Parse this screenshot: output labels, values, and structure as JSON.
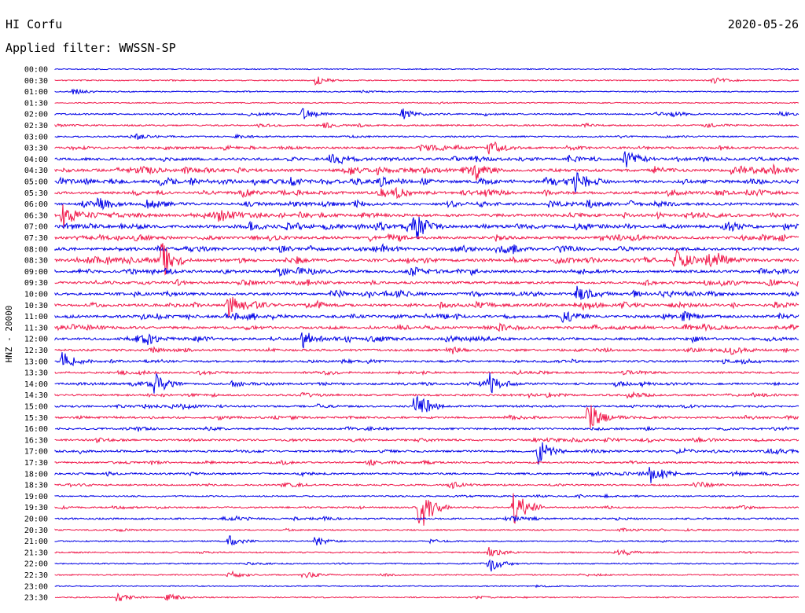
{
  "header": {
    "station": "HI Corfu",
    "date": "2020-05-26",
    "filter_label": "Applied filter: WWSSN-SP"
  },
  "chart_data": {
    "type": "line",
    "title": "HI Corfu",
    "subtitle": "Applied filter: WWSSN-SP",
    "ylabel": "HNZ - 20000",
    "trace_colors": [
      "#0000e6",
      "#f0194b"
    ],
    "row_labels": [
      "00:00",
      "00:30",
      "01:00",
      "01:30",
      "02:00",
      "02:30",
      "03:00",
      "03:30",
      "04:00",
      "04:30",
      "05:00",
      "05:30",
      "06:00",
      "06:30",
      "07:00",
      "07:30",
      "08:00",
      "08:30",
      "09:00",
      "09:30",
      "10:00",
      "10:30",
      "11:00",
      "11:30",
      "12:00",
      "12:30",
      "13:00",
      "13:30",
      "14:00",
      "14:30",
      "15:00",
      "15:30",
      "16:00",
      "16:30",
      "17:00",
      "17:30",
      "18:00",
      "18:30",
      "19:00",
      "19:30",
      "20:00",
      "20:30",
      "21:00",
      "21:30",
      "22:00",
      "22:30",
      "23:00",
      "23:30"
    ],
    "activity_level": [
      0.05,
      0.08,
      0.08,
      0.04,
      0.25,
      0.3,
      0.25,
      0.55,
      0.75,
      0.8,
      0.95,
      0.8,
      0.75,
      0.85,
      0.9,
      0.8,
      0.85,
      0.9,
      0.75,
      0.7,
      0.75,
      0.75,
      0.75,
      0.7,
      0.7,
      0.55,
      0.5,
      0.45,
      0.5,
      0.45,
      0.45,
      0.45,
      0.4,
      0.45,
      0.45,
      0.4,
      0.4,
      0.35,
      0.2,
      0.3,
      0.35,
      0.2,
      0.15,
      0.2,
      0.12,
      0.12,
      0.05,
      0.08
    ],
    "events": [
      {
        "row": "00:30",
        "minute": 10.5,
        "amp": 0.45
      },
      {
        "row": "00:30",
        "minute": 26.5,
        "amp": 0.4
      },
      {
        "row": "01:00",
        "minute": 0.7,
        "amp": 0.3
      },
      {
        "row": "02:00",
        "minute": 10.0,
        "amp": 0.55
      },
      {
        "row": "02:00",
        "minute": 14.0,
        "amp": 0.5
      },
      {
        "row": "03:30",
        "minute": 17.5,
        "amp": 0.6
      },
      {
        "row": "04:00",
        "minute": 23.0,
        "amp": 0.8
      },
      {
        "row": "04:30",
        "minute": 17.0,
        "amp": 0.6
      },
      {
        "row": "05:00",
        "minute": 21.0,
        "amp": 0.9
      },
      {
        "row": "06:30",
        "minute": 0.3,
        "amp": 1.2
      },
      {
        "row": "07:00",
        "minute": 14.5,
        "amp": 1.3
      },
      {
        "row": "08:30",
        "minute": 4.3,
        "amp": 1.6
      },
      {
        "row": "08:30",
        "minute": 25.0,
        "amp": 1.5
      },
      {
        "row": "10:00",
        "minute": 21.0,
        "amp": 0.8
      },
      {
        "row": "10:30",
        "minute": 7.0,
        "amp": 1.1
      },
      {
        "row": "11:00",
        "minute": 20.5,
        "amp": 0.7
      },
      {
        "row": "12:00",
        "minute": 10.0,
        "amp": 0.9
      },
      {
        "row": "13:00",
        "minute": 0.3,
        "amp": 0.9
      },
      {
        "row": "14:00",
        "minute": 4.0,
        "amp": 1.0
      },
      {
        "row": "14:00",
        "minute": 17.5,
        "amp": 0.9
      },
      {
        "row": "15:00",
        "minute": 14.5,
        "amp": 1.2
      },
      {
        "row": "15:30",
        "minute": 21.5,
        "amp": 1.5
      },
      {
        "row": "17:00",
        "minute": 19.5,
        "amp": 1.0
      },
      {
        "row": "18:00",
        "minute": 24.0,
        "amp": 0.9
      },
      {
        "row": "19:30",
        "minute": 14.7,
        "amp": 2.6
      },
      {
        "row": "19:30",
        "minute": 18.5,
        "amp": 1.9
      },
      {
        "row": "21:00",
        "minute": 7.0,
        "amp": 0.5
      },
      {
        "row": "21:00",
        "minute": 10.5,
        "amp": 0.45
      },
      {
        "row": "21:30",
        "minute": 17.5,
        "amp": 0.5
      },
      {
        "row": "22:00",
        "minute": 17.5,
        "amp": 0.8
      },
      {
        "row": "22:30",
        "minute": 7.0,
        "amp": 0.4
      },
      {
        "row": "22:30",
        "minute": 10.0,
        "amp": 0.4
      },
      {
        "row": "23:30",
        "minute": 2.5,
        "amp": 0.5
      },
      {
        "row": "23:30",
        "minute": 4.5,
        "amp": 0.4
      }
    ]
  }
}
